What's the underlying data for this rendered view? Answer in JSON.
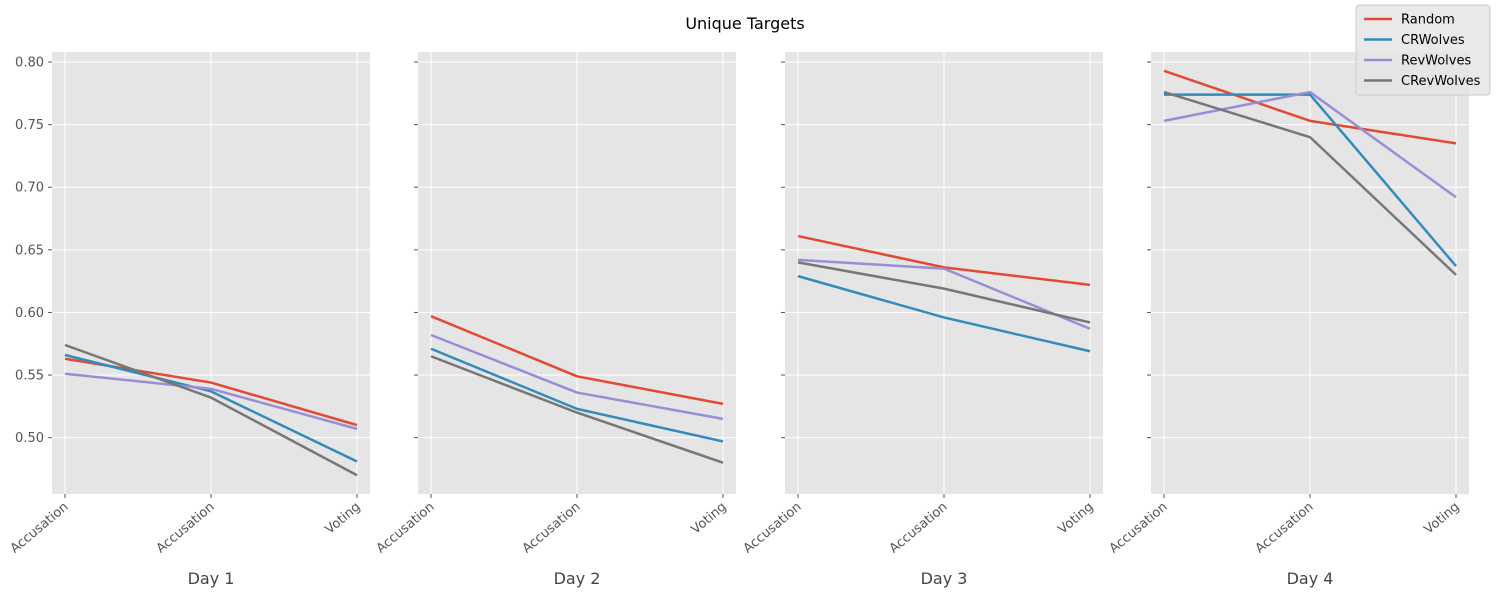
{
  "chart_data": {
    "type": "line",
    "title": "Unique Targets",
    "legend_position": "top-right",
    "grid": true,
    "ylim": [
      0.455,
      0.808
    ],
    "yticks": [
      "0.50",
      "0.55",
      "0.60",
      "0.65",
      "0.70",
      "0.75",
      "0.80"
    ],
    "ytick_values": [
      0.5,
      0.55,
      0.6,
      0.65,
      0.7,
      0.75,
      0.8
    ],
    "series_meta": [
      {
        "name": "Random",
        "color": "#E24A33"
      },
      {
        "name": "CRWolves",
        "color": "#348ABD"
      },
      {
        "name": "RevWolves",
        "color": "#988ED5"
      },
      {
        "name": "CRevWolves",
        "color": "#777777"
      }
    ],
    "panels": [
      {
        "xlabel": "Day 1",
        "categories": [
          "Accusation",
          "Accusation",
          "Voting"
        ],
        "series": [
          {
            "name": "Random",
            "values": [
              0.563,
              0.544,
              0.51
            ]
          },
          {
            "name": "CRWolves",
            "values": [
              0.566,
              0.537,
              0.481
            ]
          },
          {
            "name": "RevWolves",
            "values": [
              0.551,
              0.539,
              0.507
            ]
          },
          {
            "name": "CRevWolves",
            "values": [
              0.574,
              0.532,
              0.47
            ]
          }
        ]
      },
      {
        "xlabel": "Day 2",
        "categories": [
          "Accusation",
          "Accusation",
          "Voting"
        ],
        "series": [
          {
            "name": "Random",
            "values": [
              0.597,
              0.549,
              0.527
            ]
          },
          {
            "name": "CRWolves",
            "values": [
              0.571,
              0.523,
              0.497
            ]
          },
          {
            "name": "RevWolves",
            "values": [
              0.582,
              0.536,
              0.515
            ]
          },
          {
            "name": "CRevWolves",
            "values": [
              0.565,
              0.52,
              0.48
            ]
          }
        ]
      },
      {
        "xlabel": "Day 3",
        "categories": [
          "Accusation",
          "Accusation",
          "Voting"
        ],
        "series": [
          {
            "name": "Random",
            "values": [
              0.661,
              0.636,
              0.622
            ]
          },
          {
            "name": "CRWolves",
            "values": [
              0.629,
              0.596,
              0.569
            ]
          },
          {
            "name": "RevWolves",
            "values": [
              0.642,
              0.635,
              0.587
            ]
          },
          {
            "name": "CRevWolves",
            "values": [
              0.64,
              0.619,
              0.592
            ]
          }
        ]
      },
      {
        "xlabel": "Day 4",
        "categories": [
          "Accusation",
          "Accusation",
          "Voting"
        ],
        "series": [
          {
            "name": "Random",
            "values": [
              0.793,
              0.753,
              0.735
            ]
          },
          {
            "name": "CRWolves",
            "values": [
              0.774,
              0.774,
              0.637
            ]
          },
          {
            "name": "RevWolves",
            "values": [
              0.753,
              0.776,
              0.692
            ]
          },
          {
            "name": "CRevWolves",
            "values": [
              0.776,
              0.74,
              0.63
            ]
          }
        ]
      }
    ]
  }
}
